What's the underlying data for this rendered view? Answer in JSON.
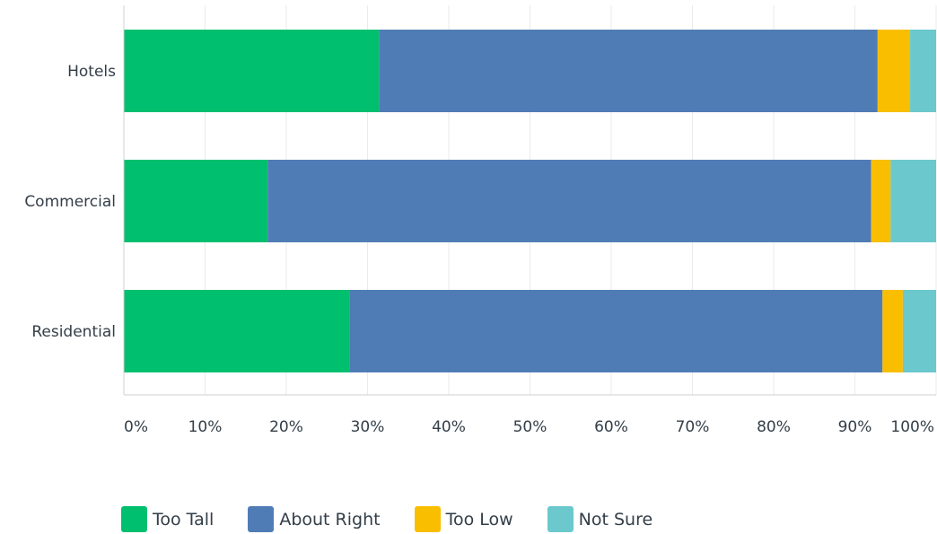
{
  "chart_data": {
    "type": "bar",
    "orientation": "horizontal",
    "stacked": true,
    "categories": [
      "Hotels",
      "Commercial",
      "Residential"
    ],
    "series": [
      {
        "name": "Too Tall",
        "color": "#00bf6f",
        "values": [
          31.4,
          17.7,
          27.8
        ]
      },
      {
        "name": "About Right",
        "color": "#507cb6",
        "values": [
          61.4,
          74.3,
          65.6
        ]
      },
      {
        "name": "Too Low",
        "color": "#f9be00",
        "values": [
          4.0,
          2.4,
          2.5
        ]
      },
      {
        "name": "Not Sure",
        "color": "#6bc8cd",
        "values": [
          3.2,
          5.6,
          4.1
        ]
      }
    ],
    "xlim": [
      0,
      100
    ],
    "x_ticks": [
      "0%",
      "10%",
      "20%",
      "30%",
      "40%",
      "50%",
      "60%",
      "70%",
      "80%",
      "90%",
      "100%"
    ],
    "grid": true,
    "legend_position": "bottom-left",
    "title": "",
    "xlabel": "",
    "ylabel": ""
  }
}
